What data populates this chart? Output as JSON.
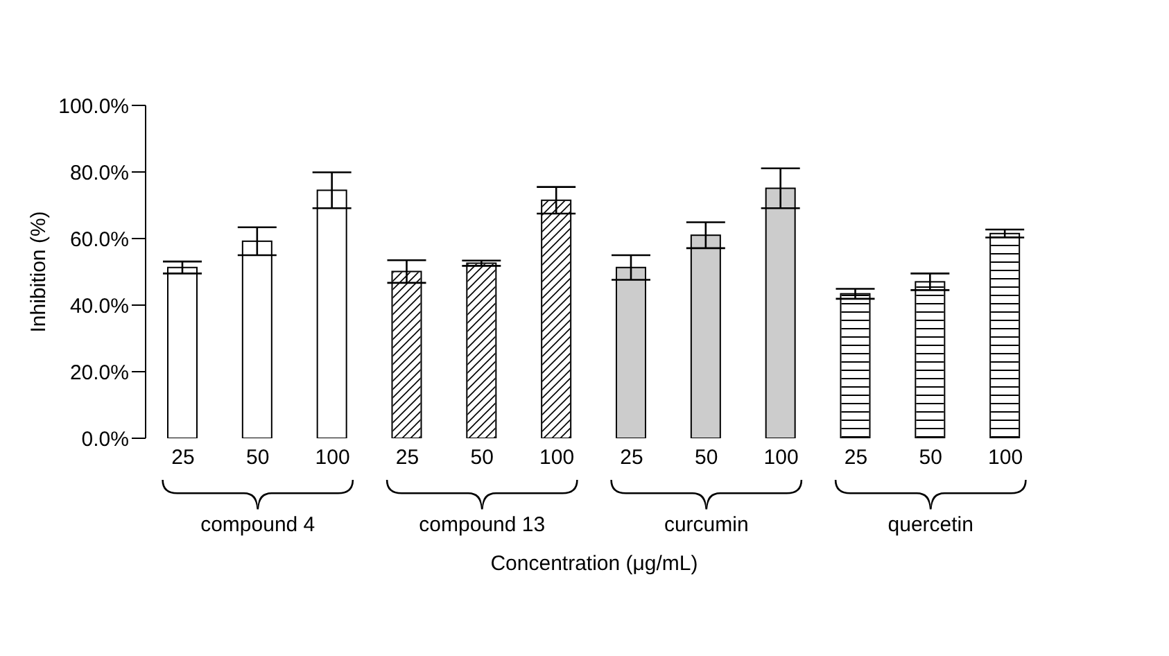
{
  "chart_data": {
    "type": "bar",
    "xlabel": "Concentration (μg/mL)",
    "ylabel": "Inhibition (%)",
    "categories": [
      "25",
      "50",
      "100",
      "25",
      "50",
      "100",
      "25",
      "50",
      "100",
      "25",
      "50",
      "100"
    ],
    "series": [
      {
        "color": "#ffffff",
        "values": [
          51.3,
          59.2,
          74.5,
          null,
          null,
          null,
          null,
          null,
          null,
          null,
          null,
          null
        ],
        "errors": [
          1.8,
          4.2,
          5.4,
          null,
          null,
          null,
          null,
          null,
          null,
          null,
          null,
          null
        ]
      },
      {
        "color": "#ffffff",
        "values": [
          null,
          null,
          null,
          50.1,
          52.6,
          71.5,
          null,
          null,
          null,
          null,
          null,
          null
        ],
        "errors": [
          null,
          null,
          null,
          3.4,
          0.8,
          4,
          null,
          null,
          null,
          null,
          null,
          null
        ]
      },
      {
        "color": "#cccccc",
        "values": [
          null,
          null,
          null,
          null,
          null,
          null,
          51.3,
          61.0,
          75.1,
          null,
          null,
          null
        ],
        "errors": [
          null,
          null,
          null,
          null,
          null,
          null,
          3.7,
          3.9,
          6,
          null,
          null,
          null
        ]
      },
      {
        "color": "#ffffff",
        "values": [
          null,
          null,
          null,
          null,
          null,
          null,
          null,
          null,
          null,
          43.4,
          47.0,
          61.5
        ],
        "errors": [
          null,
          null,
          null,
          null,
          null,
          null,
          null,
          null,
          null,
          1.5,
          2.5,
          1.2
        ]
      }
    ],
    "ylim": [
      0,
      100
    ],
    "yticks": [
      {
        "value": 0,
        "label": "0.0%"
      },
      {
        "value": 20,
        "label": "20.0%"
      },
      {
        "value": 40,
        "label": "40.0%"
      },
      {
        "value": 60,
        "label": "60.0%"
      },
      {
        "value": 80,
        "label": "80.0%"
      },
      {
        "value": 100,
        "label": "100.0%"
      }
    ],
    "annotations": [
      "compound 4",
      "compound 13",
      "curcumin",
      "quercetin"
    ],
    "grid": false,
    "legend": false
  }
}
